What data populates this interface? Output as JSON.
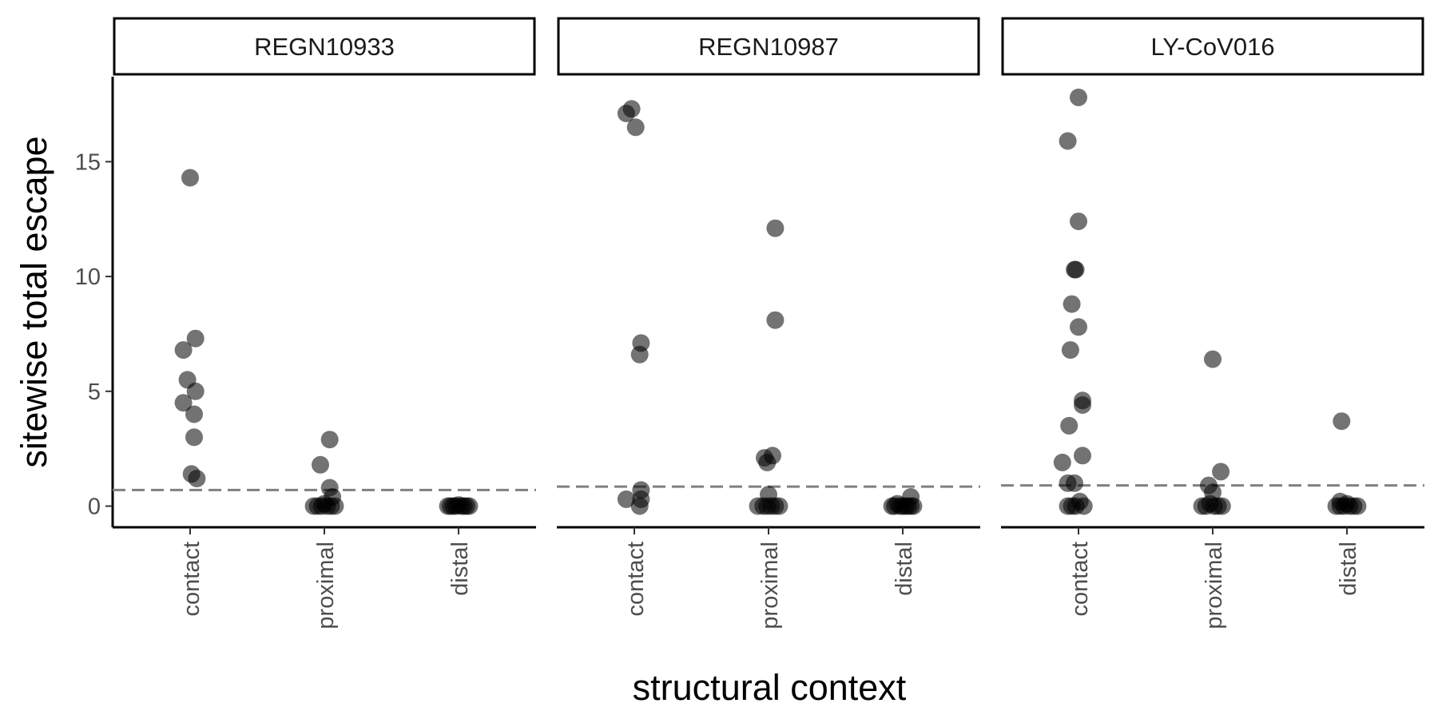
{
  "chart_data": {
    "type": "scatter",
    "title": "",
    "xlabel": "structural context",
    "ylabel": "sitewise total escape",
    "categories": [
      "contact",
      "proximal",
      "distal"
    ],
    "ylim": [
      -0.8,
      18.5
    ],
    "yticks": [
      0,
      5,
      10,
      15
    ],
    "ytick_labels": [
      "0",
      "5",
      "10",
      "15"
    ],
    "grid": false,
    "legend": "none",
    "point_color": "#000000",
    "point_alpha": 0.55,
    "threshold_color": "#808080",
    "panels": [
      {
        "name": "REGN10933",
        "threshold": 0.7,
        "points": [
          {
            "category": "contact",
            "jitter": 0.0,
            "y": 14.3
          },
          {
            "category": "contact",
            "jitter": -0.05,
            "y": 6.8
          },
          {
            "category": "contact",
            "jitter": 0.04,
            "y": 7.3
          },
          {
            "category": "contact",
            "jitter": -0.02,
            "y": 5.5
          },
          {
            "category": "contact",
            "jitter": 0.04,
            "y": 5.0
          },
          {
            "category": "contact",
            "jitter": -0.05,
            "y": 4.5
          },
          {
            "category": "contact",
            "jitter": 0.03,
            "y": 4.0
          },
          {
            "category": "contact",
            "jitter": 0.03,
            "y": 3.0
          },
          {
            "category": "contact",
            "jitter": 0.01,
            "y": 1.4
          },
          {
            "category": "contact",
            "jitter": 0.05,
            "y": 1.2
          },
          {
            "category": "proximal",
            "jitter": 0.04,
            "y": 2.9
          },
          {
            "category": "proximal",
            "jitter": -0.03,
            "y": 1.8
          },
          {
            "category": "proximal",
            "jitter": 0.04,
            "y": 0.8
          },
          {
            "category": "proximal",
            "jitter": 0.06,
            "y": 0.4
          },
          {
            "category": "proximal",
            "jitter": -0.08,
            "y": 0.0
          },
          {
            "category": "proximal",
            "jitter": -0.05,
            "y": 0.0
          },
          {
            "category": "proximal",
            "jitter": -0.02,
            "y": 0.0
          },
          {
            "category": "proximal",
            "jitter": 0.0,
            "y": 0.1
          },
          {
            "category": "proximal",
            "jitter": 0.02,
            "y": 0.0
          },
          {
            "category": "proximal",
            "jitter": 0.05,
            "y": 0.0
          },
          {
            "category": "proximal",
            "jitter": 0.08,
            "y": 0.0
          },
          {
            "category": "distal",
            "jitter": -0.08,
            "y": 0.0
          },
          {
            "category": "distal",
            "jitter": -0.06,
            "y": 0.0
          },
          {
            "category": "distal",
            "jitter": -0.04,
            "y": 0.0
          },
          {
            "category": "distal",
            "jitter": -0.02,
            "y": 0.0
          },
          {
            "category": "distal",
            "jitter": 0.0,
            "y": 0.05
          },
          {
            "category": "distal",
            "jitter": 0.02,
            "y": 0.0
          },
          {
            "category": "distal",
            "jitter": 0.04,
            "y": 0.0
          },
          {
            "category": "distal",
            "jitter": 0.06,
            "y": 0.0
          },
          {
            "category": "distal",
            "jitter": 0.08,
            "y": 0.0
          }
        ]
      },
      {
        "name": "REGN10987",
        "threshold": 0.85,
        "points": [
          {
            "category": "contact",
            "jitter": -0.02,
            "y": 17.3
          },
          {
            "category": "contact",
            "jitter": -0.06,
            "y": 17.1
          },
          {
            "category": "contact",
            "jitter": 0.01,
            "y": 16.5
          },
          {
            "category": "contact",
            "jitter": 0.05,
            "y": 7.1
          },
          {
            "category": "contact",
            "jitter": 0.04,
            "y": 6.6
          },
          {
            "category": "contact",
            "jitter": 0.05,
            "y": 0.7
          },
          {
            "category": "contact",
            "jitter": 0.05,
            "y": 0.3
          },
          {
            "category": "contact",
            "jitter": -0.06,
            "y": 0.3
          },
          {
            "category": "contact",
            "jitter": 0.04,
            "y": 0.0
          },
          {
            "category": "proximal",
            "jitter": 0.05,
            "y": 12.1
          },
          {
            "category": "proximal",
            "jitter": 0.05,
            "y": 8.1
          },
          {
            "category": "proximal",
            "jitter": 0.03,
            "y": 2.2
          },
          {
            "category": "proximal",
            "jitter": -0.03,
            "y": 2.1
          },
          {
            "category": "proximal",
            "jitter": -0.01,
            "y": 1.9
          },
          {
            "category": "proximal",
            "jitter": 0.0,
            "y": 0.5
          },
          {
            "category": "proximal",
            "jitter": -0.08,
            "y": 0.0
          },
          {
            "category": "proximal",
            "jitter": -0.04,
            "y": 0.0
          },
          {
            "category": "proximal",
            "jitter": -0.01,
            "y": 0.0
          },
          {
            "category": "proximal",
            "jitter": 0.02,
            "y": 0.0
          },
          {
            "category": "proximal",
            "jitter": 0.05,
            "y": 0.0
          },
          {
            "category": "proximal",
            "jitter": 0.08,
            "y": 0.0
          },
          {
            "category": "distal",
            "jitter": 0.06,
            "y": 0.4
          },
          {
            "category": "distal",
            "jitter": -0.08,
            "y": 0.0
          },
          {
            "category": "distal",
            "jitter": -0.06,
            "y": 0.0
          },
          {
            "category": "distal",
            "jitter": -0.04,
            "y": 0.1
          },
          {
            "category": "distal",
            "jitter": -0.02,
            "y": 0.0
          },
          {
            "category": "distal",
            "jitter": 0.0,
            "y": 0.0
          },
          {
            "category": "distal",
            "jitter": 0.02,
            "y": 0.0
          },
          {
            "category": "distal",
            "jitter": 0.04,
            "y": 0.0
          },
          {
            "category": "distal",
            "jitter": 0.06,
            "y": 0.0
          },
          {
            "category": "distal",
            "jitter": 0.08,
            "y": 0.0
          }
        ]
      },
      {
        "name": "LY-CoV016",
        "threshold": 0.9,
        "points": [
          {
            "category": "contact",
            "jitter": 0.0,
            "y": 17.8
          },
          {
            "category": "contact",
            "jitter": -0.08,
            "y": 15.9
          },
          {
            "category": "contact",
            "jitter": 0.0,
            "y": 12.4
          },
          {
            "category": "contact",
            "jitter": -0.03,
            "y": 10.3
          },
          {
            "category": "contact",
            "jitter": -0.02,
            "y": 10.3
          },
          {
            "category": "contact",
            "jitter": -0.05,
            "y": 8.8
          },
          {
            "category": "contact",
            "jitter": 0.0,
            "y": 7.8
          },
          {
            "category": "contact",
            "jitter": -0.06,
            "y": 6.8
          },
          {
            "category": "contact",
            "jitter": 0.03,
            "y": 4.6
          },
          {
            "category": "contact",
            "jitter": 0.03,
            "y": 4.4
          },
          {
            "category": "contact",
            "jitter": -0.07,
            "y": 3.5
          },
          {
            "category": "contact",
            "jitter": 0.03,
            "y": 2.2
          },
          {
            "category": "contact",
            "jitter": -0.12,
            "y": 1.9
          },
          {
            "category": "contact",
            "jitter": -0.08,
            "y": 1.0
          },
          {
            "category": "contact",
            "jitter": -0.03,
            "y": 1.0
          },
          {
            "category": "contact",
            "jitter": -0.08,
            "y": 0.0
          },
          {
            "category": "contact",
            "jitter": -0.05,
            "y": 0.0
          },
          {
            "category": "contact",
            "jitter": -0.02,
            "y": 0.0
          },
          {
            "category": "contact",
            "jitter": 0.01,
            "y": 0.2
          },
          {
            "category": "contact",
            "jitter": 0.04,
            "y": 0.0
          },
          {
            "category": "proximal",
            "jitter": 0.0,
            "y": 6.4
          },
          {
            "category": "proximal",
            "jitter": 0.06,
            "y": 1.5
          },
          {
            "category": "proximal",
            "jitter": -0.03,
            "y": 0.9
          },
          {
            "category": "proximal",
            "jitter": 0.0,
            "y": 0.6
          },
          {
            "category": "proximal",
            "jitter": -0.08,
            "y": 0.0
          },
          {
            "category": "proximal",
            "jitter": -0.05,
            "y": 0.0
          },
          {
            "category": "proximal",
            "jitter": -0.02,
            "y": 0.1
          },
          {
            "category": "proximal",
            "jitter": 0.01,
            "y": 0.0
          },
          {
            "category": "proximal",
            "jitter": 0.04,
            "y": 0.0
          },
          {
            "category": "proximal",
            "jitter": 0.07,
            "y": 0.0
          },
          {
            "category": "distal",
            "jitter": -0.04,
            "y": 3.7
          },
          {
            "category": "distal",
            "jitter": -0.05,
            "y": 0.2
          },
          {
            "category": "distal",
            "jitter": -0.08,
            "y": 0.0
          },
          {
            "category": "distal",
            "jitter": -0.05,
            "y": 0.0
          },
          {
            "category": "distal",
            "jitter": -0.02,
            "y": 0.0
          },
          {
            "category": "distal",
            "jitter": 0.0,
            "y": 0.1
          },
          {
            "category": "distal",
            "jitter": 0.02,
            "y": 0.0
          },
          {
            "category": "distal",
            "jitter": 0.05,
            "y": 0.0
          },
          {
            "category": "distal",
            "jitter": 0.08,
            "y": 0.0
          }
        ]
      }
    ]
  }
}
